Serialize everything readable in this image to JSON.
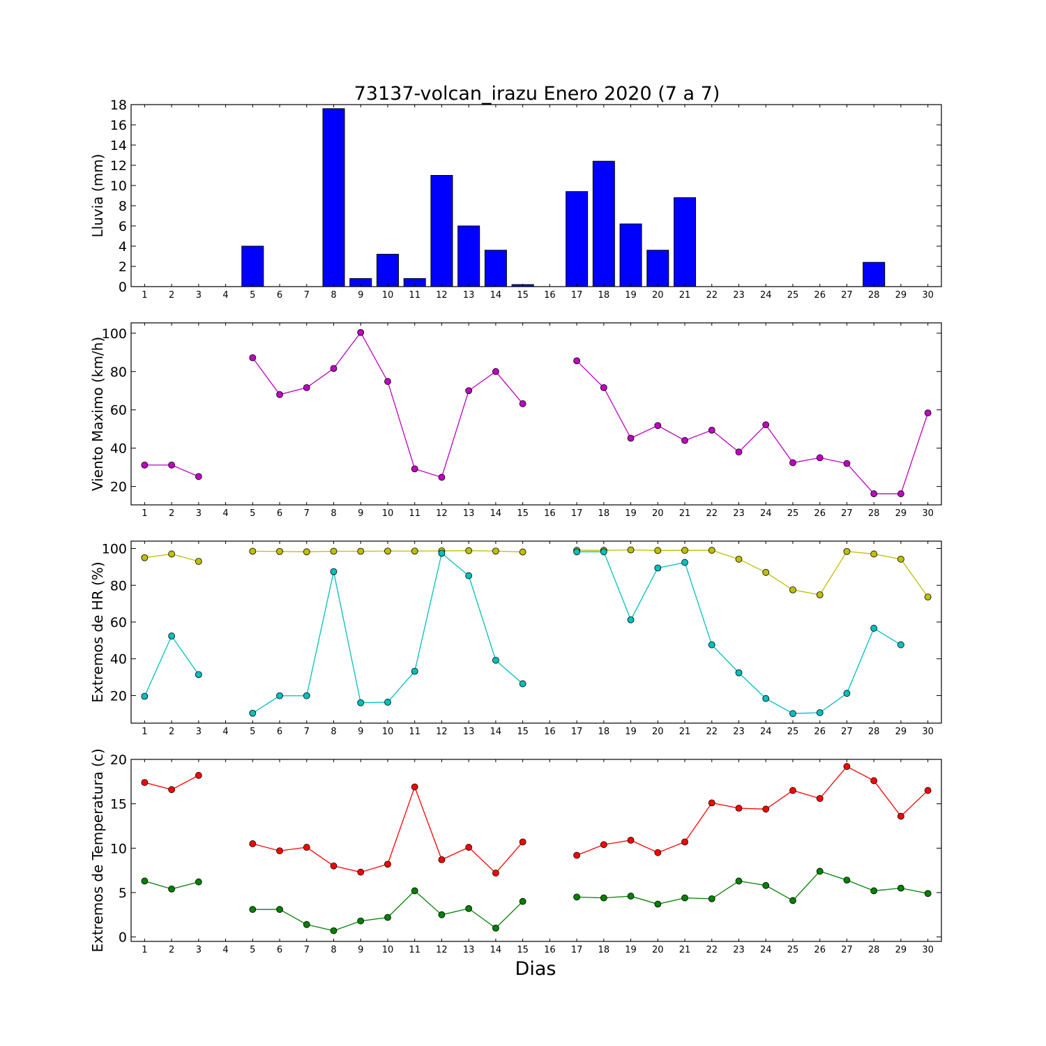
{
  "figure": {
    "title": "73137-volcan_irazu Enero 2020  (7 a 7)",
    "xlabel": "Dias"
  },
  "chart_data": [
    {
      "type": "bar",
      "ylabel": "Lluvia (mm)",
      "categories": [
        "1",
        "2",
        "3",
        "4",
        "5",
        "6",
        "7",
        "8",
        "9",
        "10",
        "11",
        "12",
        "13",
        "14",
        "15",
        "16",
        "17",
        "18",
        "19",
        "20",
        "21",
        "22",
        "23",
        "24",
        "25",
        "26",
        "27",
        "28",
        "29",
        "30"
      ],
      "series": [
        {
          "color": "#0000ff",
          "values": [
            0,
            0,
            0,
            0,
            4.0,
            0,
            0,
            17.6,
            0.8,
            3.2,
            0.8,
            11.0,
            6.0,
            3.6,
            0.2,
            0,
            9.4,
            12.4,
            6.2,
            3.6,
            8.8,
            0,
            0,
            0,
            0,
            0,
            0,
            2.4,
            0,
            0
          ]
        }
      ],
      "ylim": [
        0,
        18
      ],
      "yticks": [
        0,
        2,
        4,
        6,
        8,
        10,
        12,
        14,
        16,
        18
      ]
    },
    {
      "type": "line",
      "ylabel": "Viento Maximo (km/h)",
      "categories": [
        "1",
        "2",
        "3",
        "4",
        "5",
        "6",
        "7",
        "8",
        "9",
        "10",
        "11",
        "12",
        "13",
        "14",
        "15",
        "16",
        "17",
        "18",
        "19",
        "20",
        "21",
        "22",
        "23",
        "24",
        "25",
        "26",
        "27",
        "28",
        "29",
        "30"
      ],
      "series": [
        {
          "color": "#bf00bf",
          "values": [
            31.2,
            31.2,
            25.2,
            null,
            87.2,
            68.0,
            71.6,
            81.6,
            100.4,
            74.8,
            29.2,
            24.8,
            70.0,
            80.0,
            63.2,
            null,
            85.6,
            71.6,
            45.2,
            51.8,
            44.0,
            49.4,
            38.0,
            52.2,
            32.4,
            35.0,
            32.0,
            16.2,
            16.2,
            58.4
          ]
        }
      ],
      "ylim": [
        10.4,
        105.4
      ],
      "yticks": [
        20,
        40,
        60,
        80,
        100
      ]
    },
    {
      "type": "line",
      "ylabel": "Extremos de HR (%)",
      "categories": [
        "1",
        "2",
        "3",
        "4",
        "5",
        "6",
        "7",
        "8",
        "9",
        "10",
        "11",
        "12",
        "13",
        "14",
        "15",
        "16",
        "17",
        "18",
        "19",
        "20",
        "21",
        "22",
        "23",
        "24",
        "25",
        "26",
        "27",
        "28",
        "29",
        "30"
      ],
      "series": [
        {
          "color": "#bfbf00",
          "values": [
            95,
            97,
            93,
            null,
            98.5,
            98.4,
            98.2,
            98.5,
            98.5,
            98.6,
            98.6,
            98.7,
            98.8,
            98.6,
            98.1,
            null,
            99,
            99,
            99.2,
            98.9,
            99,
            99,
            94.2,
            87,
            77.5,
            74.8,
            98.4,
            97,
            94.2,
            73.6
          ]
        },
        {
          "color": "#00bfbf",
          "values": [
            19.6,
            52.4,
            31.4,
            null,
            10.4,
            19.9,
            19.9,
            87.4,
            16.1,
            16.4,
            33.2,
            97.4,
            85.2,
            39.2,
            26.4,
            null,
            98.2,
            98.2,
            61.2,
            89.4,
            92.4,
            47.6,
            32.4,
            18.4,
            10.2,
            10.7,
            21.2,
            56.6,
            47.6,
            null
          ]
        }
      ],
      "ylim": [
        5,
        104
      ],
      "yticks": [
        20,
        40,
        60,
        80,
        100
      ]
    },
    {
      "type": "line",
      "ylabel": "Extremos de Temperatura (c)",
      "categories": [
        "1",
        "2",
        "3",
        "4",
        "5",
        "6",
        "7",
        "8",
        "9",
        "10",
        "11",
        "12",
        "13",
        "14",
        "15",
        "16",
        "17",
        "18",
        "19",
        "20",
        "21",
        "22",
        "23",
        "24",
        "25",
        "26",
        "27",
        "28",
        "29",
        "30"
      ],
      "series": [
        {
          "color": "#ff0000",
          "values": [
            17.4,
            16.6,
            18.2,
            null,
            10.5,
            9.7,
            10.1,
            8.0,
            7.3,
            8.2,
            16.9,
            8.7,
            10.1,
            7.2,
            10.7,
            null,
            9.2,
            10.4,
            10.9,
            9.5,
            10.7,
            15.1,
            14.5,
            14.4,
            16.5,
            15.6,
            19.2,
            17.6,
            13.6,
            16.5
          ]
        },
        {
          "color": "#008000",
          "values": [
            6.3,
            5.4,
            6.2,
            null,
            3.1,
            3.1,
            1.4,
            0.7,
            1.8,
            2.2,
            5.2,
            2.5,
            3.2,
            1.0,
            4.0,
            null,
            4.5,
            4.4,
            4.6,
            3.7,
            4.4,
            4.3,
            6.3,
            5.8,
            4.1,
            7.4,
            6.4,
            5.2,
            5.5,
            4.9
          ]
        }
      ],
      "ylim": [
        -0.5,
        20
      ],
      "yticks": [
        0,
        5,
        10,
        15,
        20
      ]
    }
  ]
}
